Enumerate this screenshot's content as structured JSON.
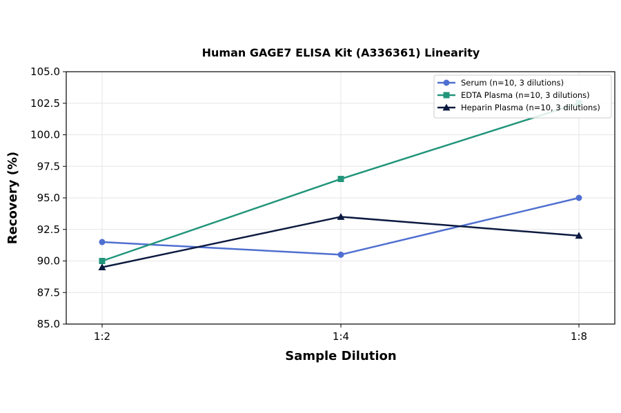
{
  "chart_data": {
    "type": "line",
    "title": "Human GAGE7 ELISA Kit (A336361) Linearity",
    "xlabel": "Sample Dilution",
    "ylabel": "Recovery (%)",
    "categories": [
      "1:2",
      "1:4",
      "1:8"
    ],
    "ylim": [
      85.0,
      105.0
    ],
    "yticks": [
      "85.0",
      "87.5",
      "90.0",
      "92.5",
      "95.0",
      "97.5",
      "100.0",
      "102.5",
      "105.0"
    ],
    "ytick_values": [
      85.0,
      87.5,
      90.0,
      92.5,
      95.0,
      97.5,
      100.0,
      102.5,
      105.0
    ],
    "grid": true,
    "legend_position": "top-right",
    "series": [
      {
        "name": "Serum (n=10, 3 dilutions)",
        "values": [
          91.5,
          90.5,
          95.0
        ],
        "color": "#4f6fd0",
        "marker": "circle"
      },
      {
        "name": "EDTA Plasma (n=10, 3 dilutions)",
        "values": [
          90.0,
          96.5,
          102.5
        ],
        "color": "#21957a",
        "marker": "square"
      },
      {
        "name": "Heparin Plasma (n=10, 3 dilutions)",
        "values": [
          89.5,
          93.5,
          92.0
        ],
        "color": "#0c1a40",
        "marker": "triangle"
      }
    ]
  }
}
